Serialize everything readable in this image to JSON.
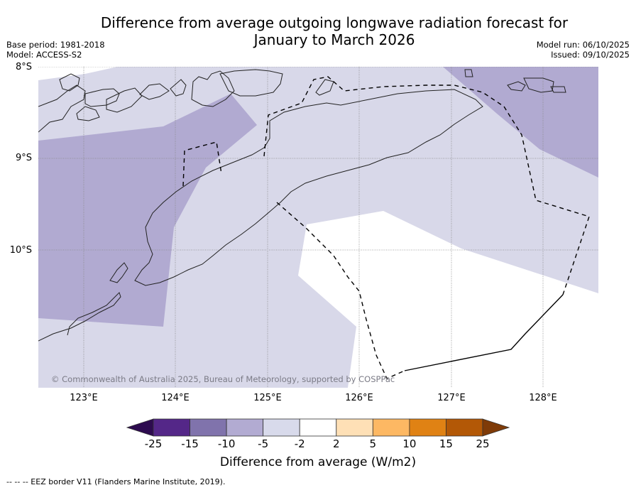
{
  "header": {
    "title_line1": "Difference from average outgoing longwave radiation forecast for",
    "title_line2": "January to March 2026",
    "base_period": "Base period: 1981-2018",
    "model": "Model: ACCESS-S2",
    "model_run": "Model run: 06/10/2025",
    "issued": "Issued: 09/10/2025"
  },
  "map": {
    "region": "Timor Sea / Timor-Leste",
    "lat_range": [
      -11.5,
      -8
    ],
    "lon_range": [
      122.5,
      128.6
    ],
    "lat_labels": [
      "8°S",
      "9°S",
      "10°S"
    ],
    "lon_labels": [
      "123°E",
      "124°E",
      "125°E",
      "126°E",
      "127°E",
      "128°E"
    ],
    "copyright": "© Commonwealth of Australia 2025, Bureau of Meteorology, supported by COSPPac",
    "fill_colors": {
      "-10 to -5": "#b1aad1",
      "-5 to -2": "#d8d8e9",
      "-2 to 2": "#ffffff"
    }
  },
  "colorbar": {
    "title": "Difference from average (W/m2)",
    "ticks": [
      "-25",
      "-15",
      "-10",
      "-5",
      "-2",
      "2",
      "5",
      "10",
      "15",
      "25"
    ],
    "low_extend_color": "#2d0b4f",
    "high_extend_color": "#7f3b08",
    "bins": [
      {
        "range": "-25 to -15",
        "color": "#542788"
      },
      {
        "range": "-15 to -10",
        "color": "#8073ac"
      },
      {
        "range": "-10 to -5",
        "color": "#b2abd2"
      },
      {
        "range": "-5 to -2",
        "color": "#d8daeb"
      },
      {
        "range": "-2 to 2",
        "color": "#ffffff"
      },
      {
        "range": "2 to 5",
        "color": "#fee0b6"
      },
      {
        "range": "5 to 10",
        "color": "#fdb863"
      },
      {
        "range": "10 to 15",
        "color": "#e08214"
      },
      {
        "range": "15 to 25",
        "color": "#b35806"
      }
    ]
  },
  "footer": {
    "eez_note": "--  --  -- EEZ border V11 (Flanders Marine Institute, 2019)."
  }
}
